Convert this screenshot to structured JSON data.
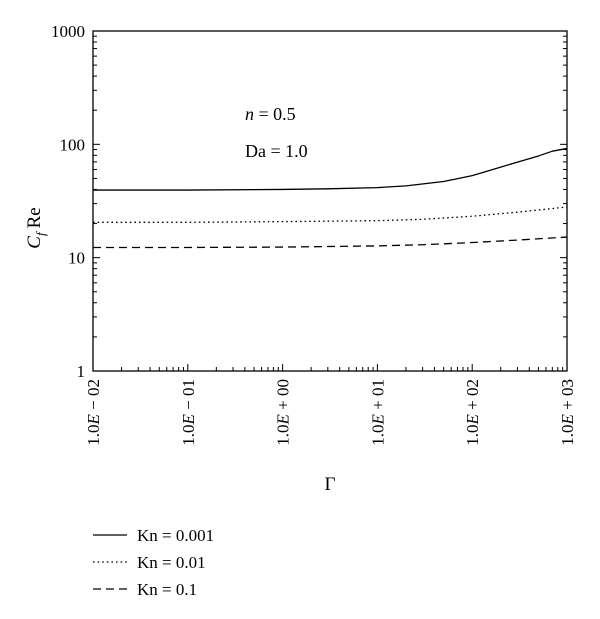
{
  "chart_data": {
    "type": "line",
    "xlabel": "Γ",
    "ylabel_main": "C",
    "ylabel_sub": "f",
    "ylabel_tail": "Re",
    "xscale": "log",
    "yscale": "log",
    "xlim": [
      0.01,
      1000
    ],
    "ylim": [
      1,
      1000
    ],
    "x_ticks": [
      {
        "value": 0.01,
        "label": "1.0E − 02"
      },
      {
        "value": 0.1,
        "label": "1.0E − 01"
      },
      {
        "value": 1,
        "label": "1.0E + 00"
      },
      {
        "value": 10,
        "label": "1.0E + 01"
      },
      {
        "value": 100,
        "label": "1.0E + 02"
      },
      {
        "value": 1000,
        "label": "1.0E + 03"
      }
    ],
    "y_ticks": [
      {
        "value": 1,
        "label": "1"
      },
      {
        "value": 10,
        "label": "10"
      },
      {
        "value": 100,
        "label": "100"
      },
      {
        "value": 1000,
        "label": "1000"
      }
    ],
    "grid": false,
    "legend_position": "below",
    "annotations": [
      {
        "italic": "n",
        "text": " = 0.5"
      },
      {
        "italic": "",
        "text": "Da  = 1.0"
      }
    ],
    "series": [
      {
        "name": "Kn = 0.001",
        "dash": "solid",
        "x": [
          0.01,
          0.1,
          1,
          3,
          10,
          20,
          50,
          100,
          200,
          500,
          700,
          1000
        ],
        "y": [
          39.5,
          39.5,
          40,
          40.5,
          41.5,
          43,
          47,
          53,
          63,
          79,
          87,
          92
        ]
      },
      {
        "name": "Kn = 0.01",
        "dash": "dotted",
        "x": [
          0.01,
          0.1,
          1,
          10,
          30,
          100,
          300,
          1000
        ],
        "y": [
          20.5,
          20.5,
          20.8,
          21.2,
          21.8,
          23.2,
          25.2,
          28
        ]
      },
      {
        "name": "Kn = 0.1",
        "dash": "dashed",
        "x": [
          0.01,
          0.1,
          1,
          10,
          30,
          100,
          300,
          1000
        ],
        "y": [
          12.3,
          12.3,
          12.4,
          12.7,
          13,
          13.6,
          14.3,
          15.2
        ]
      }
    ]
  }
}
